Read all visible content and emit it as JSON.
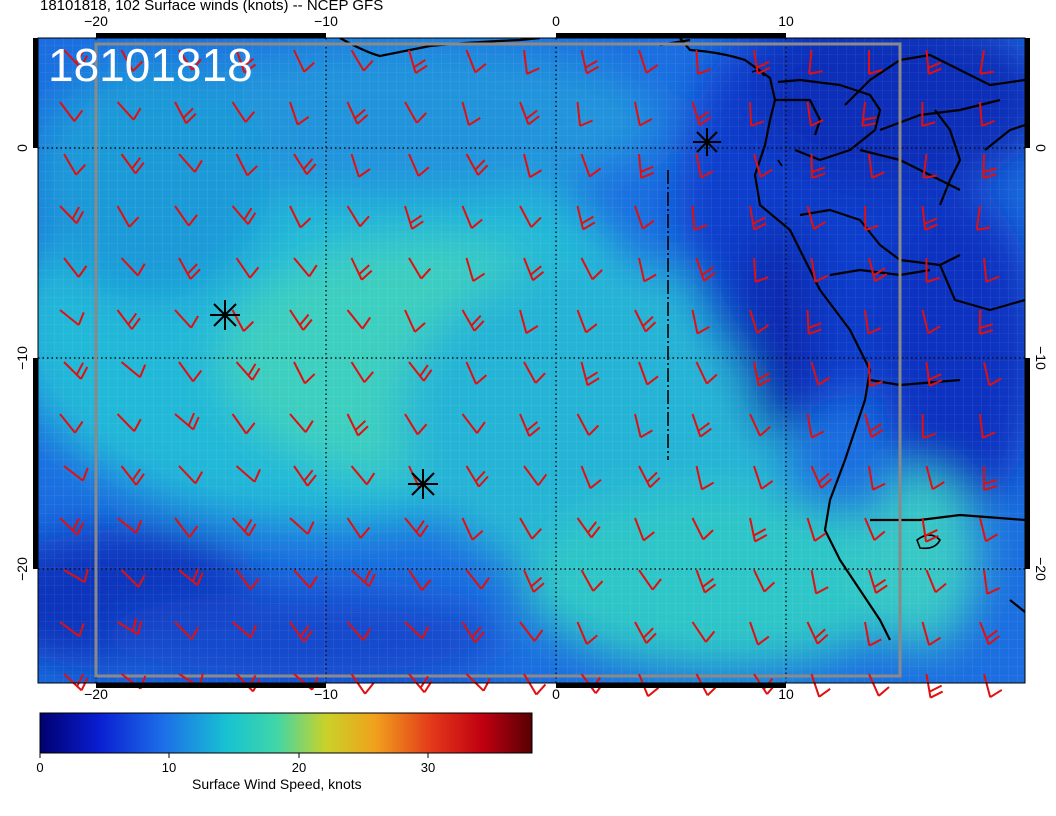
{
  "title": "18101818, 102 Surface winds (knots) -- NCEP GFS",
  "stamp": "18101818",
  "axes": {
    "top_ticks": [
      "−20",
      "−10",
      "0",
      "10"
    ],
    "bottom_ticks": [
      "−20",
      "−10",
      "0",
      "10"
    ],
    "left_ticks": [
      "0",
      "−10",
      "−20"
    ],
    "right_ticks": [
      "0",
      "−10",
      "−20"
    ]
  },
  "colorbar": {
    "label": "Surface Wind Speed, knots",
    "ticks": [
      "0",
      "10",
      "20",
      "30"
    ],
    "range": [
      0,
      38
    ]
  },
  "colors": {
    "barb": "#e01010",
    "coast": "#000000",
    "grid_frame": "#888888"
  },
  "markers": [
    {
      "name": "star-marker",
      "lon": 7,
      "lat": 0.5
    },
    {
      "name": "star-marker",
      "lon": -14,
      "lat": -8
    },
    {
      "name": "star-marker",
      "lon": -5.5,
      "lat": -16
    }
  ]
}
